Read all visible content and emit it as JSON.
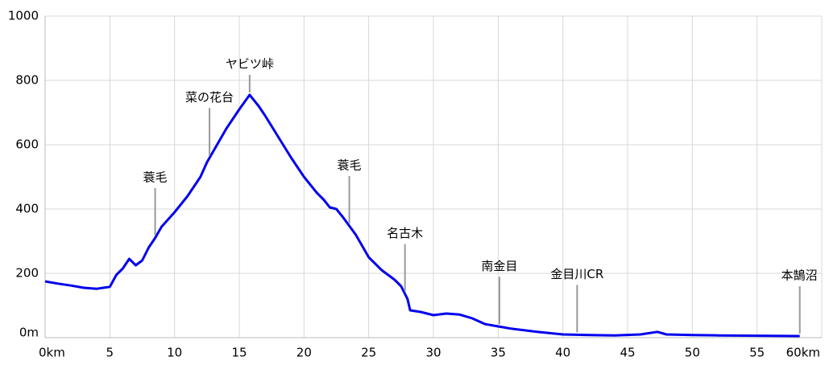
{
  "chart_data": {
    "type": "line",
    "x": [
      0,
      1,
      2,
      3,
      4,
      5,
      5.5,
      6,
      6.5,
      7,
      7.5,
      8,
      8.5,
      9,
      10,
      11,
      12,
      12.5,
      13,
      14,
      15,
      15.8,
      16.5,
      17,
      18,
      19,
      20,
      21,
      21.5,
      22,
      22.5,
      23,
      24,
      25,
      26,
      27,
      27.5,
      28,
      28.2,
      29,
      30,
      31,
      32,
      33,
      34,
      35,
      36,
      38,
      40,
      42,
      44,
      46,
      47.3,
      48,
      50,
      52,
      55,
      58,
      58.3
    ],
    "values": [
      175,
      168,
      162,
      155,
      152,
      158,
      195,
      215,
      245,
      225,
      240,
      280,
      310,
      345,
      390,
      440,
      500,
      545,
      580,
      650,
      710,
      755,
      720,
      690,
      625,
      560,
      500,
      450,
      430,
      405,
      400,
      375,
      320,
      250,
      210,
      180,
      160,
      120,
      85,
      80,
      70,
      75,
      72,
      60,
      42,
      35,
      28,
      18,
      10,
      8,
      7,
      10,
      18,
      10,
      8,
      7,
      6,
      5,
      5
    ],
    "color": "#0000ee",
    "xlim": [
      0,
      60
    ],
    "xticks": [
      {
        "value": 0,
        "label": "0km"
      },
      5,
      10,
      15,
      20,
      25,
      30,
      35,
      40,
      45,
      50,
      55,
      {
        "value": 60,
        "label": "60km"
      }
    ],
    "ylim": [
      0,
      1000
    ],
    "yticks": [
      {
        "value": 0,
        "label": "0m"
      },
      200,
      400,
      600,
      800,
      1000
    ],
    "grid": true,
    "annotations": [
      {
        "label": "蓑毛",
        "x": 8.5
      },
      {
        "label": "菜の花台",
        "x": 12.7
      },
      {
        "label": "ヤビツ峠",
        "x": 15.8
      },
      {
        "label": "蓑毛",
        "x": 23.5
      },
      {
        "label": "名古木",
        "x": 27.8
      },
      {
        "label": "南金目",
        "x": 35.1
      },
      {
        "label": "金目川CR",
        "x": 41.1
      },
      {
        "label": "本鵠沼",
        "x": 58.3
      }
    ]
  }
}
